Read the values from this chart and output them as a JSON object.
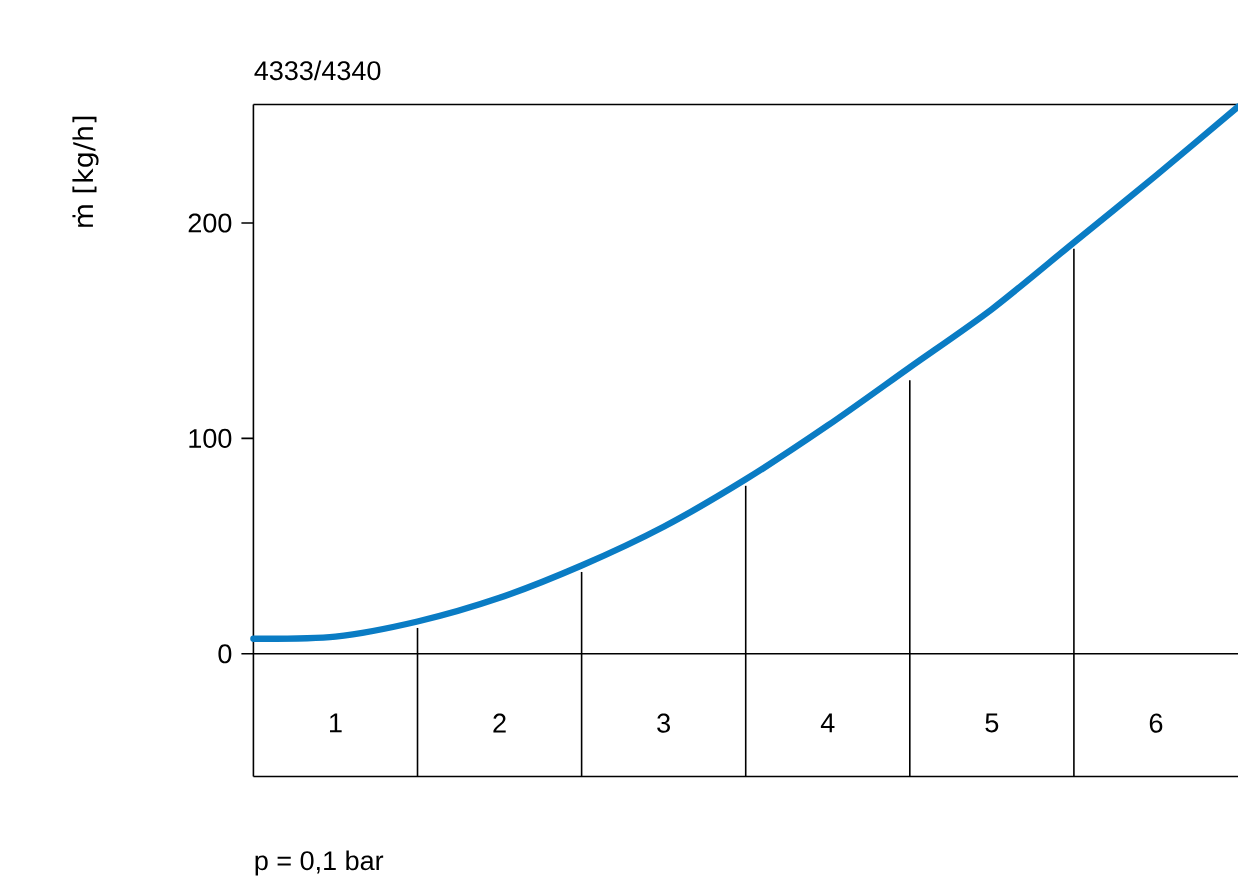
{
  "chart_data": {
    "type": "line",
    "title": "4333/4340",
    "xlabel": "p  = 0,1 bar",
    "ylabel": "ṁ [kg/h]",
    "x": [
      0.5,
      1,
      1.5,
      2,
      2.5,
      3,
      3.5,
      4,
      4.5,
      5,
      5.5,
      6,
      6.5
    ],
    "xlim": [
      0.5,
      6.5
    ],
    "ylim": [
      -57,
      255
    ],
    "xticks": [
      1,
      2,
      3,
      4,
      5,
      6
    ],
    "yticks": [
      0,
      100,
      200
    ],
    "series": [
      {
        "color": "#0a7cc4",
        "values": [
          7,
          8,
          15,
          26,
          41,
          59,
          81,
          106,
          133,
          160,
          191,
          222,
          254
        ]
      },
      {
        "type": "bar",
        "color": "#000000",
        "x": [
          1.5,
          2.5,
          3.5,
          4.5,
          5.5
        ],
        "values": [
          12,
          38,
          78,
          127,
          188
        ]
      }
    ],
    "ref_lines": [
      {
        "axis": "y",
        "value": 0,
        "color": "#000000"
      }
    ],
    "marker": "none",
    "grid": false
  }
}
